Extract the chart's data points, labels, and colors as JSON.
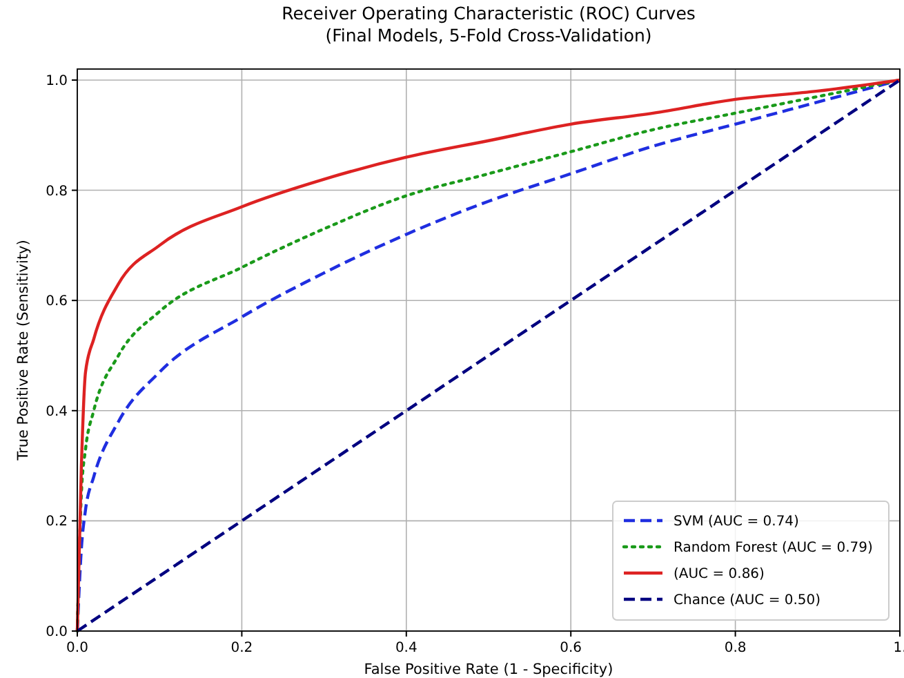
{
  "chart_data": {
    "type": "line",
    "title": "Receiver Operating Characteristic (ROC) Curves\n(Final Models, 5-Fold Cross-Validation)",
    "xlabel": "False Positive Rate (1 - Specificity)",
    "ylabel": "True Positive Rate (Sensitivity)",
    "xlim": [
      0,
      1
    ],
    "ylim": [
      0,
      1.02
    ],
    "xticks": [
      {
        "value": 0,
        "label": "0.0"
      },
      {
        "value": 0.2,
        "label": "0.2"
      },
      {
        "value": 0.4,
        "label": "0.4"
      },
      {
        "value": 0.6,
        "label": "0.6"
      },
      {
        "value": 0.8,
        "label": "0.8"
      },
      {
        "value": 1,
        "label": "1."
      }
    ],
    "yticks": [
      {
        "value": 0,
        "label": "0.0"
      },
      {
        "value": 0.2,
        "label": "0.2"
      },
      {
        "value": 0.4,
        "label": "0.4"
      },
      {
        "value": 0.6,
        "label": "0.6"
      },
      {
        "value": 0.8,
        "label": "0.8"
      },
      {
        "value": 1,
        "label": "1.0"
      }
    ],
    "grid": true,
    "legend": "bottom right",
    "marker": "none",
    "series": [
      {
        "name": "SVM (AUC = 0.74)",
        "color": "#1f2ee0",
        "line_style": "dashed",
        "x": [
          0,
          0.005,
          0.01,
          0.02,
          0.05,
          0.1,
          0.2,
          0.3,
          0.4,
          0.5,
          0.6,
          0.7,
          0.8,
          0.9,
          1
        ],
        "values": [
          0,
          0.15,
          0.22,
          0.28,
          0.38,
          0.47,
          0.57,
          0.65,
          0.72,
          0.78,
          0.83,
          0.88,
          0.92,
          0.96,
          1
        ]
      },
      {
        "name": "Random Forest (AUC = 0.79)",
        "color": "#1a9a1a",
        "line_style": "dotted",
        "x": [
          0,
          0.005,
          0.01,
          0.02,
          0.05,
          0.1,
          0.2,
          0.3,
          0.4,
          0.5,
          0.6,
          0.7,
          0.8,
          0.9,
          1
        ],
        "values": [
          0,
          0.25,
          0.33,
          0.4,
          0.5,
          0.58,
          0.66,
          0.73,
          0.79,
          0.83,
          0.87,
          0.91,
          0.94,
          0.97,
          1
        ]
      },
      {
        "name": "(AUC = 0.86)",
        "color": "#dd2222",
        "line_style": "solid",
        "x": [
          0,
          0.005,
          0.01,
          0.02,
          0.05,
          0.1,
          0.2,
          0.3,
          0.4,
          0.5,
          0.6,
          0.7,
          0.8,
          0.9,
          1
        ],
        "values": [
          0,
          0.3,
          0.47,
          0.53,
          0.63,
          0.7,
          0.77,
          0.82,
          0.86,
          0.89,
          0.92,
          0.94,
          0.965,
          0.98,
          1
        ]
      },
      {
        "name": "Chance (AUC = 0.50)",
        "color": "#000080",
        "line_style": "dashed",
        "x": [
          0,
          1
        ],
        "values": [
          0,
          1
        ]
      }
    ]
  }
}
